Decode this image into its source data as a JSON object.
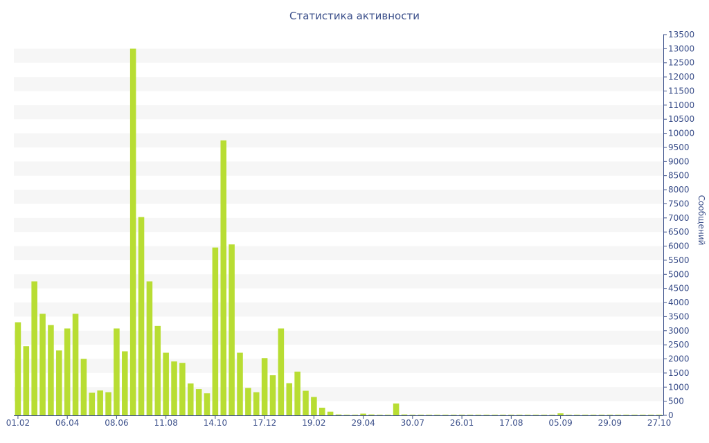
{
  "chart_data": {
    "type": "bar",
    "title": "Статистика активности",
    "ylabel": "Сообщений",
    "xlabel": "",
    "ylim": [
      0,
      13500
    ],
    "yticks": [
      0,
      500,
      1000,
      1500,
      2000,
      2500,
      3000,
      3500,
      4000,
      4500,
      5000,
      5500,
      6000,
      6500,
      7000,
      7500,
      8000,
      8500,
      9000,
      9500,
      10000,
      10500,
      11000,
      11500,
      12000,
      12500,
      13000,
      13500
    ],
    "x_tick_labels": [
      "01.02",
      "06.04",
      "08.06",
      "11.08",
      "14.10",
      "17.12",
      "19.02",
      "29.04",
      "30.07",
      "26.01",
      "17.08",
      "05.09",
      "29.09",
      "27.10"
    ],
    "x_tick_bar_index": [
      0,
      6,
      12,
      18,
      24,
      30,
      36,
      42,
      48,
      54,
      60,
      66,
      72,
      78
    ],
    "y_axis_side": "right",
    "grid": "alternating horizontal bands",
    "colors": {
      "bar": "#b8dd33",
      "band": "#f6f6f6",
      "axis": "#3b4f8a",
      "text": "#3b4f8a"
    },
    "values": [
      3300,
      2450,
      4750,
      3600,
      3200,
      2300,
      3080,
      3600,
      2000,
      800,
      880,
      820,
      3080,
      2270,
      13000,
      7030,
      4750,
      3170,
      2220,
      1910,
      1860,
      1130,
      930,
      780,
      5950,
      9750,
      6060,
      2220,
      970,
      820,
      2030,
      1420,
      3080,
      1140,
      1550,
      870,
      650,
      270,
      130,
      30,
      20,
      20,
      60,
      30,
      20,
      20,
      420,
      30,
      20,
      20,
      20,
      20,
      20,
      20,
      20,
      20,
      20,
      20,
      20,
      20,
      20,
      20,
      20,
      20,
      20,
      20,
      70,
      20,
      20,
      20,
      20,
      20,
      20,
      20,
      20,
      20,
      20,
      20,
      20
    ]
  }
}
